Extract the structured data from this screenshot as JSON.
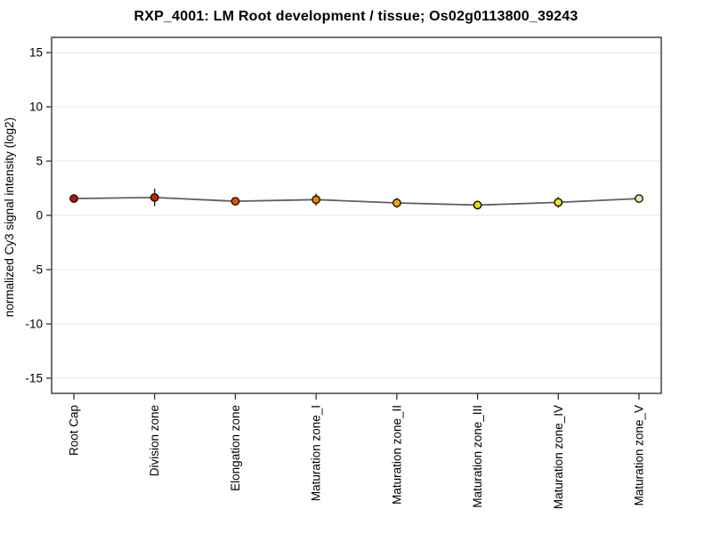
{
  "chart_data": {
    "type": "line",
    "title": "RXP_4001: LM Root development / tissue; Os02g0113800_39243",
    "ylabel": "normalized Cy3 signal intensity (log2)",
    "xlabel": "",
    "categories": [
      "Root Cap",
      "Division zone",
      "Elongation zone",
      "Maturation zone_I",
      "Maturation zone_II",
      "Maturation zone_III",
      "Maturation zone_IV",
      "Maturation zone_V"
    ],
    "values": [
      1.55,
      1.65,
      1.3,
      1.45,
      1.15,
      0.95,
      1.2,
      1.55
    ],
    "errors": [
      0.25,
      0.8,
      0.3,
      0.55,
      0.45,
      0.3,
      0.5,
      0.3
    ],
    "point_colors": [
      "#b01111",
      "#cc2200",
      "#dd5500",
      "#ee8800",
      "#f0a810",
      "#eed800",
      "#ece32a",
      "#e6e6ae"
    ],
    "yticks": [
      15,
      10,
      5,
      0,
      -5,
      -10,
      -15
    ],
    "ylim": [
      -16.4,
      16.4
    ],
    "grid": true,
    "legend": "none",
    "colors": {
      "line": "#606060",
      "frame": "#444444",
      "gridline": "#e4e4e4",
      "tick": "#333333",
      "error_bar": "#111111",
      "marker_edge": "#1a0d00",
      "background": "#ffffff"
    }
  }
}
